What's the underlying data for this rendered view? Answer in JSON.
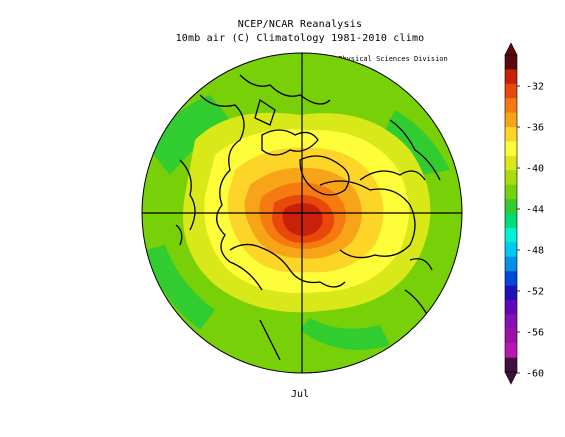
{
  "title": {
    "line1": "NCEP/NCAR Reanalysis",
    "line2": "10mb air (C) Climatology 1981-2010 climo"
  },
  "credit": "NOAA/ESRL Physical Sciences Division",
  "month_label": "Jul",
  "colorbar": {
    "tick_labels": [
      "-32",
      "-36",
      "-40",
      "-44",
      "-48",
      "-52",
      "-56",
      "-60"
    ],
    "tick_values": [
      -32,
      -36,
      -40,
      -44,
      -48,
      -52,
      -56,
      -60
    ],
    "bins": [
      {
        "color": "#5a0a0a"
      },
      {
        "color": "#c8200a"
      },
      {
        "color": "#e8480a"
      },
      {
        "color": "#f57a10"
      },
      {
        "color": "#f8a418"
      },
      {
        "color": "#fdd428"
      },
      {
        "color": "#fdfd3a"
      },
      {
        "color": "#d8e818"
      },
      {
        "color": "#a8dc10"
      },
      {
        "color": "#78d008"
      },
      {
        "color": "#30cc30"
      },
      {
        "color": "#00dc78"
      },
      {
        "color": "#00f0d8"
      },
      {
        "color": "#00c8f0"
      },
      {
        "color": "#0090e8"
      },
      {
        "color": "#0048d8"
      },
      {
        "color": "#2010b8"
      },
      {
        "color": "#6008b8"
      },
      {
        "color": "#8810b0"
      },
      {
        "color": "#a010a8"
      },
      {
        "color": "#b818b0"
      },
      {
        "color": "#401040"
      }
    ]
  },
  "map": {
    "background_color": "#78d008",
    "projection": "north polar stereographic",
    "warm_center_color": "#b8200a"
  }
}
